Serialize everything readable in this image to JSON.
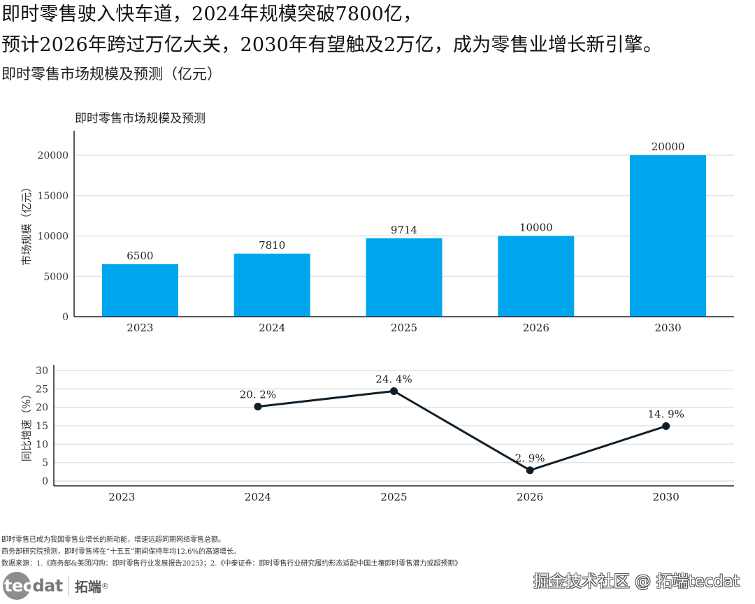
{
  "header": {
    "headline_line1": "即时零售驶入快车道，2024年规模突破7800亿，",
    "headline_line2": "预计2026年跨过万亿大关，2030年有望触及2万亿，成为零售业增长新引擎。",
    "subtitle": "即时零售市场规模及预测（亿元）"
  },
  "chart_data": [
    {
      "type": "bar",
      "title": "即时零售市场规模及预测",
      "categories": [
        "2023",
        "2024",
        "2025",
        "2026",
        "2030"
      ],
      "values": [
        6500,
        7810,
        9714,
        10000,
        20000
      ],
      "data_labels": [
        "6500",
        "7810",
        "9714",
        "10000",
        "20000"
      ],
      "xlabel": "",
      "ylabel": "市场规模（亿元）",
      "ylim": [
        0,
        22500
      ],
      "yticks": [
        0,
        5000,
        10000,
        15000,
        20000
      ],
      "ytick_labels": [
        "0",
        "5000",
        "10000",
        "15000",
        "20000"
      ],
      "grid": true,
      "bar_color": "#00a6ed"
    },
    {
      "type": "line",
      "title": "",
      "categories": [
        "2023",
        "2024",
        "2025",
        "2026",
        "2030"
      ],
      "values": [
        null,
        20.2,
        24.4,
        2.9,
        14.9
      ],
      "data_labels": [
        null,
        "20. 2%",
        "24. 4%",
        "2. 9%",
        "14. 9%"
      ],
      "xlabel": "",
      "ylabel": "同比增速（%）",
      "ylim": [
        -1.5,
        31
      ],
      "yticks": [
        0,
        5,
        10,
        15,
        20,
        25,
        30
      ],
      "ytick_labels": [
        "0",
        "5",
        "10",
        "15",
        "20",
        "25",
        "30"
      ],
      "grid": true,
      "line_color": "#0f1f2a"
    }
  ],
  "notes": {
    "line1": "即时零售已成为我国零售业增长的新动能，增速远超同期网络零售总额。",
    "line2": "商务部研究院预测，即时零售将在“十五五”期间保持年均12.6%的高速增长。",
    "line3": "数据来源：1.《商务部&美团闪购：即时零售行业发展报告2025》；2.《中泰证券：即时零售行业研究履约形态适配中国土壤即时零售潜力或超预期》"
  },
  "logo": {
    "tec": "tec",
    "dat": "dat",
    "cn": "拓端",
    "reg": "®"
  },
  "watermark": "掘金技术社区 @ 拓端tecdat"
}
